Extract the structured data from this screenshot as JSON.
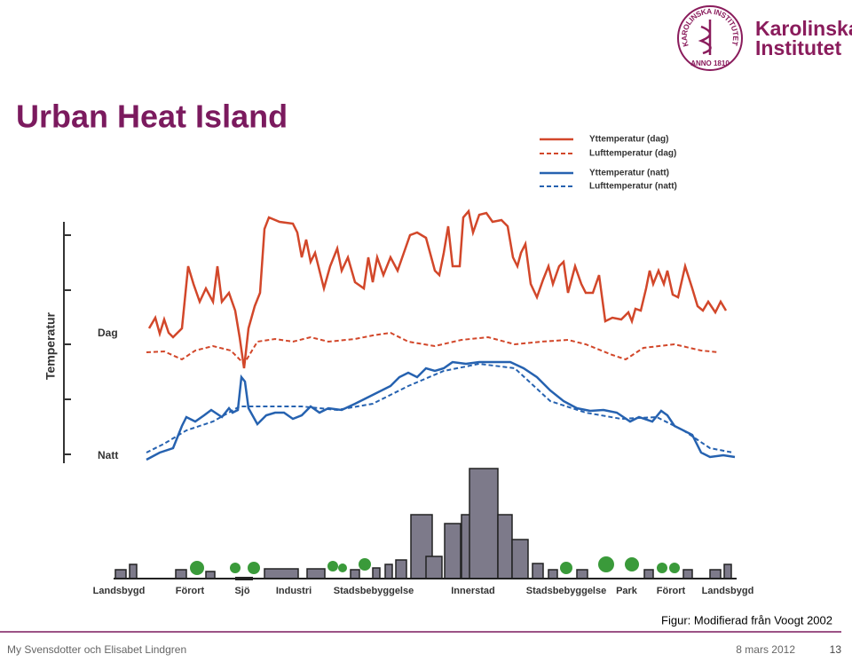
{
  "logo": {
    "seal_text": "KAROLINSKA INSTITUTET",
    "seal_year": "ANNO 1810",
    "name_line1": "Karolinska",
    "name_line2": "Institutet"
  },
  "title": "Urban Heat Island",
  "figure": {
    "legend": [
      "Yttemperatur (dag)",
      "Lufttemperatur (dag)",
      "Yttemperatur (natt)",
      "Lufttemperatur (natt)"
    ],
    "axis_label": "Temperatur",
    "levels": [
      "Dag",
      "Natt"
    ],
    "zones": [
      "Landsbygd",
      "Förort",
      "Sjö",
      "Industri",
      "Stadsbebyggelse",
      "Innerstad",
      "Stadsbebyggelse",
      "Park",
      "Förort",
      "Landsbygd"
    ]
  },
  "caption": "Figur: Modifierad från Voogt 2002",
  "footer": {
    "authors": "My Svensdotter och Elisabet Lindgren",
    "date": "8 mars 2012",
    "page": "13"
  }
}
